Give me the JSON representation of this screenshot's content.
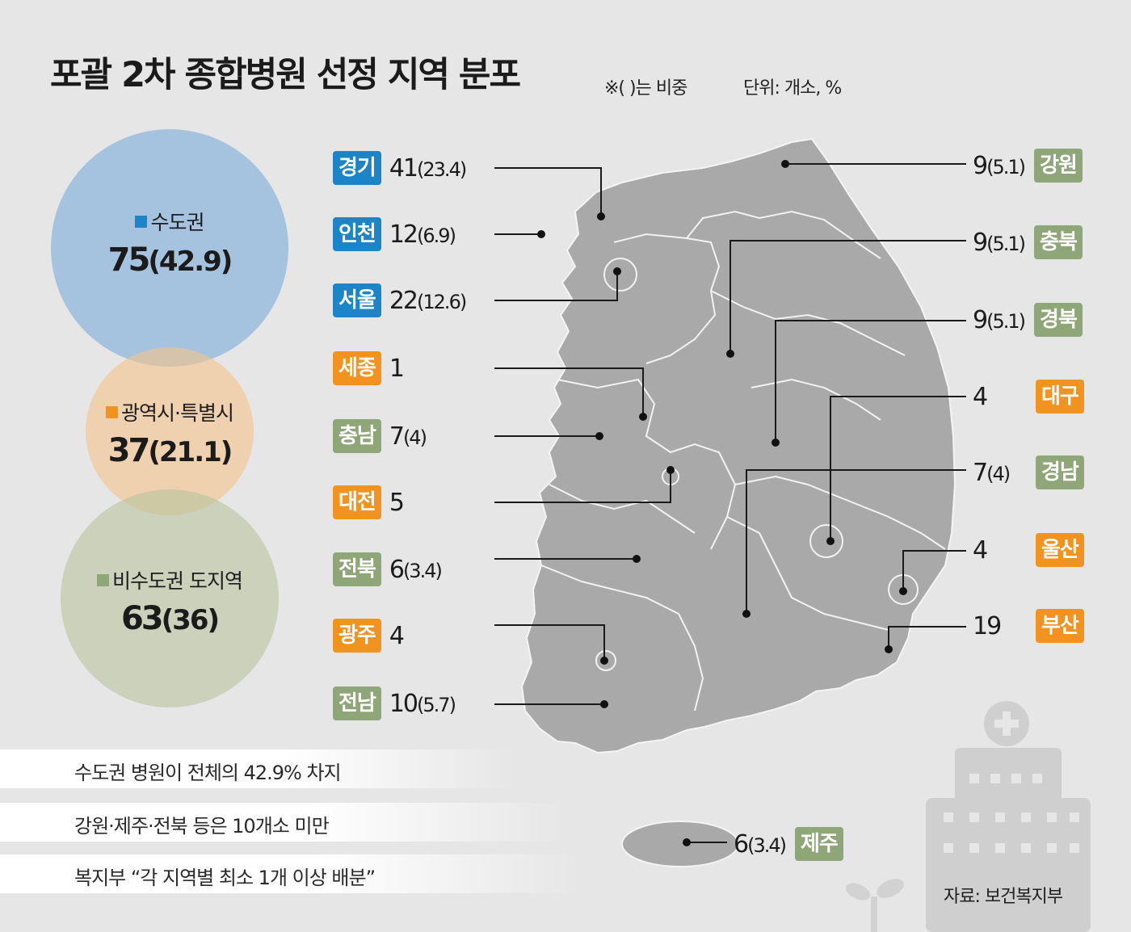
{
  "title": "포괄 2차 종합병원 선정 지역 분포",
  "note": "※( )는 비중",
  "unit": "단위: 개소, %",
  "groups": [
    {
      "label": "수도권",
      "count": "75",
      "share": "(42.9)",
      "color": "#1d84c8"
    },
    {
      "label": "광역시·특별시",
      "count": "37",
      "share": "(21.1)",
      "color": "#f2921f"
    },
    {
      "label": "비수도권 도지역",
      "count": "63",
      "share": "(36)",
      "color": "#8ea678"
    }
  ],
  "regions_left": [
    {
      "name": "경기",
      "count": "41",
      "share": "(23.4)",
      "type": "capital"
    },
    {
      "name": "인천",
      "count": "12",
      "share": "(6.9)",
      "type": "capital"
    },
    {
      "name": "서울",
      "count": "22",
      "share": "(12.6)",
      "type": "capital"
    },
    {
      "name": "세종",
      "count": "1",
      "share": "",
      "type": "metro"
    },
    {
      "name": "충남",
      "count": "7",
      "share": "(4)",
      "type": "province"
    },
    {
      "name": "대전",
      "count": "5",
      "share": "",
      "type": "metro"
    },
    {
      "name": "전북",
      "count": "6",
      "share": "(3.4)",
      "type": "province"
    },
    {
      "name": "광주",
      "count": "4",
      "share": "",
      "type": "metro"
    },
    {
      "name": "전남",
      "count": "10",
      "share": "(5.7)",
      "type": "province"
    }
  ],
  "regions_right": [
    {
      "name": "강원",
      "count": "9",
      "share": "(5.1)",
      "type": "province"
    },
    {
      "name": "충북",
      "count": "9",
      "share": "(5.1)",
      "type": "province"
    },
    {
      "name": "경북",
      "count": "9",
      "share": "(5.1)",
      "type": "province"
    },
    {
      "name": "대구",
      "count": "4",
      "share": "",
      "type": "metro"
    },
    {
      "name": "경남",
      "count": "7",
      "share": "(4)",
      "type": "province"
    },
    {
      "name": "울산",
      "count": "4",
      "share": "",
      "type": "metro"
    },
    {
      "name": "부산",
      "count": "19",
      "share": "",
      "type": "metro"
    }
  ],
  "jeju": {
    "name": "제주",
    "count": "6",
    "share": "(3.4)",
    "type": "province"
  },
  "highlights": [
    "수도권 병원이 전체의 42.9% 차지",
    "강원·제주·전북 등은 10개소 미만",
    "복지부 “각 지역별 최소 1개 이상 배분”"
  ],
  "source": "자료: 보건복지부"
}
